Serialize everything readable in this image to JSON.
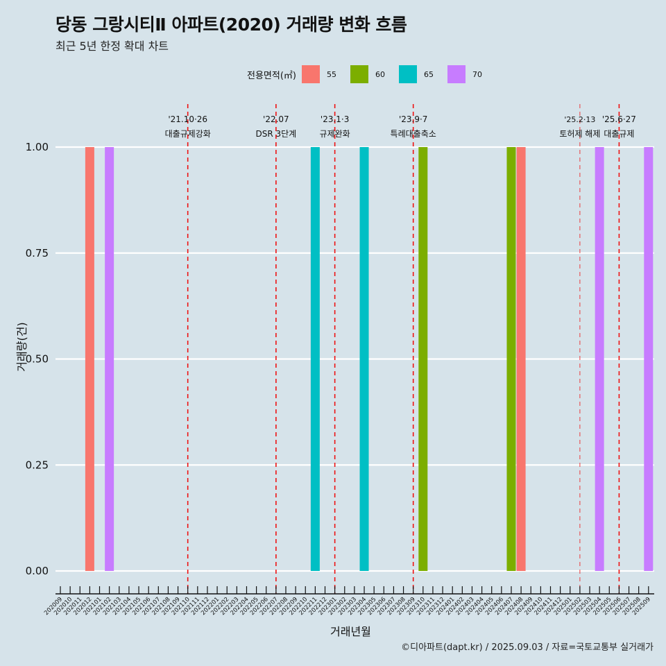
{
  "title": "당동 그랑시티Ⅱ 아파트(2020) 거래량 변화 흐름",
  "subtitle": "최근 5년 한정 확대 차트",
  "caption": "©디아파트(dapt.kr) / 2025.09.03 / 자료=국토교통부 실거래가",
  "legend": {
    "title": "전용면적(㎡)",
    "items": [
      {
        "label": "55",
        "color": "#f8766d"
      },
      {
        "label": "60",
        "color": "#7cae00"
      },
      {
        "label": "65",
        "color": "#00bfc4"
      },
      {
        "label": "70",
        "color": "#c77cff"
      }
    ]
  },
  "chart_data": {
    "type": "bar",
    "title": "당동 그랑시티Ⅱ 아파트(2020) 거래량 변화 흐름",
    "subtitle": "최근 5년 한정 확대 차트",
    "xlabel": "거래년월",
    "ylabel": "거래량(건)",
    "ylim": [
      0,
      1
    ],
    "yticks": [
      "0.00",
      "0.25",
      "0.50",
      "0.75",
      "1.00"
    ],
    "ytick_values": [
      0,
      0.25,
      0.5,
      0.75,
      1.0
    ],
    "grid": true,
    "legend_position": "top",
    "categories": [
      "202009",
      "202010",
      "202011",
      "202012",
      "202101",
      "202102",
      "202103",
      "202104",
      "202105",
      "202106",
      "202107",
      "202108",
      "202109",
      "202110",
      "202111",
      "202112",
      "202201",
      "202202",
      "202203",
      "202204",
      "202205",
      "202206",
      "202207",
      "202208",
      "202209",
      "202210",
      "202211",
      "202212",
      "202301",
      "202302",
      "202303",
      "202304",
      "202305",
      "202306",
      "202307",
      "202308",
      "202309",
      "202310",
      "202311",
      "202312",
      "202401",
      "202402",
      "202403",
      "202404",
      "202405",
      "202406",
      "202407",
      "202408",
      "202409",
      "202410",
      "202411",
      "202412",
      "202501",
      "202502",
      "202503",
      "202504",
      "202505",
      "202506",
      "202507",
      "202508",
      "202509"
    ],
    "bars": [
      {
        "month": "202012",
        "area": "55",
        "value": 1
      },
      {
        "month": "202102",
        "area": "70",
        "value": 1
      },
      {
        "month": "202211",
        "area": "65",
        "value": 1
      },
      {
        "month": "202304",
        "area": "65",
        "value": 1
      },
      {
        "month": "202310",
        "area": "60",
        "value": 1
      },
      {
        "month": "202407",
        "area": "60",
        "value": 1
      },
      {
        "month": "202408",
        "area": "55",
        "value": 1
      },
      {
        "month": "202504",
        "area": "70",
        "value": 1
      },
      {
        "month": "202509",
        "area": "70",
        "value": 1
      }
    ],
    "events": [
      {
        "month": "202110",
        "date": "'21.10·26",
        "label": "대출규제강화",
        "style": "strong"
      },
      {
        "month": "202207",
        "date": "'22.07",
        "label": "DSR 3단계",
        "style": "strong"
      },
      {
        "month": "202301",
        "date": "'23.1·3",
        "label": "규제완화",
        "style": "strong"
      },
      {
        "month": "202309",
        "date": "'23.9·7",
        "label": "특례대출축소",
        "style": "strong"
      },
      {
        "month": "202502",
        "date": "'25.2·13",
        "label": "토허제 해제",
        "style": "light"
      },
      {
        "month": "202506",
        "date": "'25.6·27",
        "label": "대출규제",
        "style": "strong"
      }
    ],
    "event_color": "#ee1111"
  }
}
